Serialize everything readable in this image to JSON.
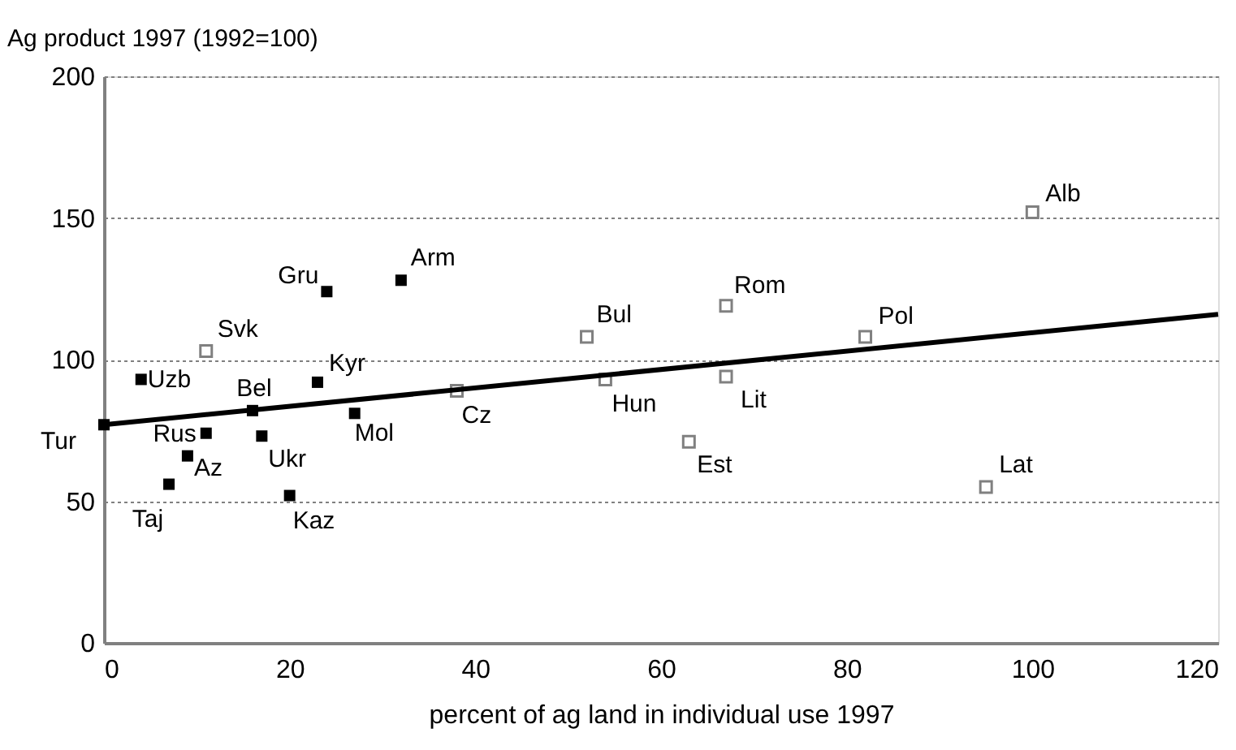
{
  "chart_data": {
    "type": "scatter",
    "xlabel": "percent of ag land in individual use 1997",
    "ylabel": "Ag product 1997 (1992=100)",
    "xlim": [
      0,
      120
    ],
    "xticks": [
      0,
      20,
      40,
      60,
      80,
      100,
      120
    ],
    "ylim": [
      0,
      200
    ],
    "yticks": [
      0,
      50,
      100,
      150,
      200
    ],
    "grid": "y",
    "marker": "square",
    "series": [
      {
        "color": "#000000",
        "x": [
          0,
          4,
          11,
          9,
          7,
          16,
          17,
          20,
          23,
          27,
          24,
          32
        ],
        "values": [
          77,
          93,
          74,
          66,
          56,
          82,
          73,
          52,
          92,
          81,
          124,
          128
        ]
      },
      {
        "color": "#808080",
        "x": [
          11,
          38,
          52,
          54,
          67,
          67,
          63,
          82,
          100,
          95
        ],
        "values": [
          103,
          89,
          108,
          93,
          119,
          94,
          71,
          108,
          152,
          55
        ]
      },
      {
        "type": "line",
        "marker": "none",
        "color": "#000000",
        "x": [
          0,
          120
        ],
        "values": [
          77,
          116
        ]
      }
    ],
    "annotations": [
      {
        "text": "Tur",
        "x": 0,
        "y": 77
      },
      {
        "text": "Uzb",
        "x": 4,
        "y": 93
      },
      {
        "text": "Rus",
        "x": 11,
        "y": 74
      },
      {
        "text": "Az",
        "x": 9,
        "y": 66
      },
      {
        "text": "Taj",
        "x": 7,
        "y": 56
      },
      {
        "text": "Bel",
        "x": 16,
        "y": 82
      },
      {
        "text": "Ukr",
        "x": 17,
        "y": 73
      },
      {
        "text": "Kaz",
        "x": 20,
        "y": 52
      },
      {
        "text": "Kyr",
        "x": 23,
        "y": 92
      },
      {
        "text": "Mol",
        "x": 27,
        "y": 81
      },
      {
        "text": "Gru",
        "x": 24,
        "y": 124
      },
      {
        "text": "Arm",
        "x": 32,
        "y": 128
      },
      {
        "text": "Svk",
        "x": 11,
        "y": 103
      },
      {
        "text": "Cz",
        "x": 38,
        "y": 89
      },
      {
        "text": "Bul",
        "x": 52,
        "y": 108
      },
      {
        "text": "Hun",
        "x": 54,
        "y": 93
      },
      {
        "text": "Rom",
        "x": 67,
        "y": 119
      },
      {
        "text": "Lit",
        "x": 67,
        "y": 94
      },
      {
        "text": "Est",
        "x": 63,
        "y": 71
      },
      {
        "text": "Pol",
        "x": 82,
        "y": 108
      },
      {
        "text": "Alb",
        "x": 100,
        "y": 152
      },
      {
        "text": "Lat",
        "x": 95,
        "y": 55
      }
    ]
  }
}
